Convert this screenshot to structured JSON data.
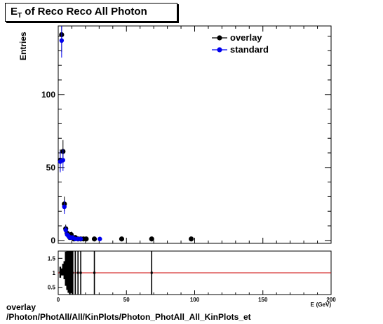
{
  "chart_data": [
    {
      "type": "scatter",
      "title_main": "E",
      "title_sub": "T",
      "title_rest": " of Reco Reco All Photon",
      "xlabel": "E_T (GeV)",
      "ylabel": "Entries",
      "xlim": [
        0,
        200
      ],
      "ylim": [
        -2,
        147
      ],
      "yticks": [
        0,
        50,
        100
      ],
      "legend_position": "top-right",
      "series": [
        {
          "name": "overlay",
          "color": "#000000",
          "points": [
            {
              "x": 1.5,
              "y": 55,
              "err": 7.4
            },
            {
              "x": 2.5,
              "y": 141,
              "err": 11.9
            },
            {
              "x": 3.5,
              "y": 61,
              "err": 7.8
            },
            {
              "x": 4.5,
              "y": 25,
              "err": 5.0
            },
            {
              "x": 5.5,
              "y": 8,
              "err": 2.8
            },
            {
              "x": 6.5,
              "y": 5,
              "err": 2.2
            },
            {
              "x": 7.5,
              "y": 4,
              "err": 2.0
            },
            {
              "x": 8.5,
              "y": 2,
              "err": 1.4
            },
            {
              "x": 9.5,
              "y": 4,
              "err": 2.0
            },
            {
              "x": 10.5,
              "y": 2,
              "err": 1.4
            },
            {
              "x": 11.5,
              "y": 1,
              "err": 1.0
            },
            {
              "x": 12.5,
              "y": 2,
              "err": 1.4
            },
            {
              "x": 14.5,
              "y": 1,
              "err": 1.0
            },
            {
              "x": 16.5,
              "y": 1,
              "err": 1.0
            },
            {
              "x": 18.5,
              "y": 1,
              "err": 1.0
            },
            {
              "x": 20.5,
              "y": 1,
              "err": 1.0
            },
            {
              "x": 26.5,
              "y": 1,
              "err": 1.0
            },
            {
              "x": 46.5,
              "y": 1,
              "err": 1.0
            },
            {
              "x": 68.5,
              "y": 1,
              "err": 1.0
            },
            {
              "x": 97.5,
              "y": 1,
              "err": 1.0
            }
          ]
        },
        {
          "name": "standard",
          "color": "#0000ee",
          "points": [
            {
              "x": 1.5,
              "y": 54,
              "err": 7.3
            },
            {
              "x": 2.5,
              "y": 137,
              "err": 11.7
            },
            {
              "x": 3.5,
              "y": 55,
              "err": 7.4
            },
            {
              "x": 4.5,
              "y": 23,
              "err": 4.8
            },
            {
              "x": 5.5,
              "y": 7,
              "err": 2.6
            },
            {
              "x": 6.5,
              "y": 4,
              "err": 2.0
            },
            {
              "x": 7.5,
              "y": 3,
              "err": 1.7
            },
            {
              "x": 8.5,
              "y": 2,
              "err": 1.4
            },
            {
              "x": 9.5,
              "y": 2,
              "err": 1.4
            },
            {
              "x": 10.5,
              "y": 2,
              "err": 1.4
            },
            {
              "x": 12.5,
              "y": 1,
              "err": 1.0
            },
            {
              "x": 14.5,
              "y": 1,
              "err": 1.0
            },
            {
              "x": 16.5,
              "y": 1,
              "err": 1.0
            },
            {
              "x": 30.5,
              "y": 1,
              "err": 1.0
            }
          ]
        }
      ]
    },
    {
      "type": "scatter",
      "xlim": [
        0,
        200
      ],
      "ylim": [
        0.25,
        1.75
      ],
      "yticks": [
        0.5,
        1,
        1.5
      ],
      "ytick_labels": [
        "0.5",
        "1",
        "1.5"
      ],
      "xticks": [
        0,
        50,
        100,
        150,
        200
      ],
      "reference_line": 1,
      "reference_color": "#cc0000",
      "ratio_points": [
        {
          "x": 1.5,
          "y": 1.02,
          "err": 0.19
        },
        {
          "x": 2.5,
          "y": 1.03,
          "err": 0.12
        },
        {
          "x": 3.5,
          "y": 1.11,
          "err": 0.2
        },
        {
          "x": 4.5,
          "y": 1.09,
          "err": 0.31
        },
        {
          "x": 5.5,
          "y": 1.14,
          "err": 0.59
        },
        {
          "x": 6.5,
          "y": 1.25,
          "err": 0.84
        },
        {
          "x": 7.5,
          "y": 1.33,
          "err": 1.02
        },
        {
          "x": 8.5,
          "y": 1.0,
          "err": 1.0
        },
        {
          "x": 9.5,
          "y": 2.0,
          "err": 1.7
        },
        {
          "x": 10.5,
          "y": 1.0,
          "err": 1.0
        },
        {
          "x": 12.5,
          "y": 2.0,
          "err": 2.45
        },
        {
          "x": 14.5,
          "y": 1.0,
          "err": 1.41
        },
        {
          "x": 16.5,
          "y": 1.0,
          "err": 1.41
        },
        {
          "x": 26.5,
          "y": 1.0,
          "err": 5.0
        },
        {
          "x": 68.5,
          "y": 1.0,
          "err": 5.0
        }
      ]
    }
  ],
  "footer": {
    "line1": "overlay",
    "line2": "/Photon/PhotAll/All/KinPlots/Photon_PhotAll_All_KinPlots_et"
  }
}
